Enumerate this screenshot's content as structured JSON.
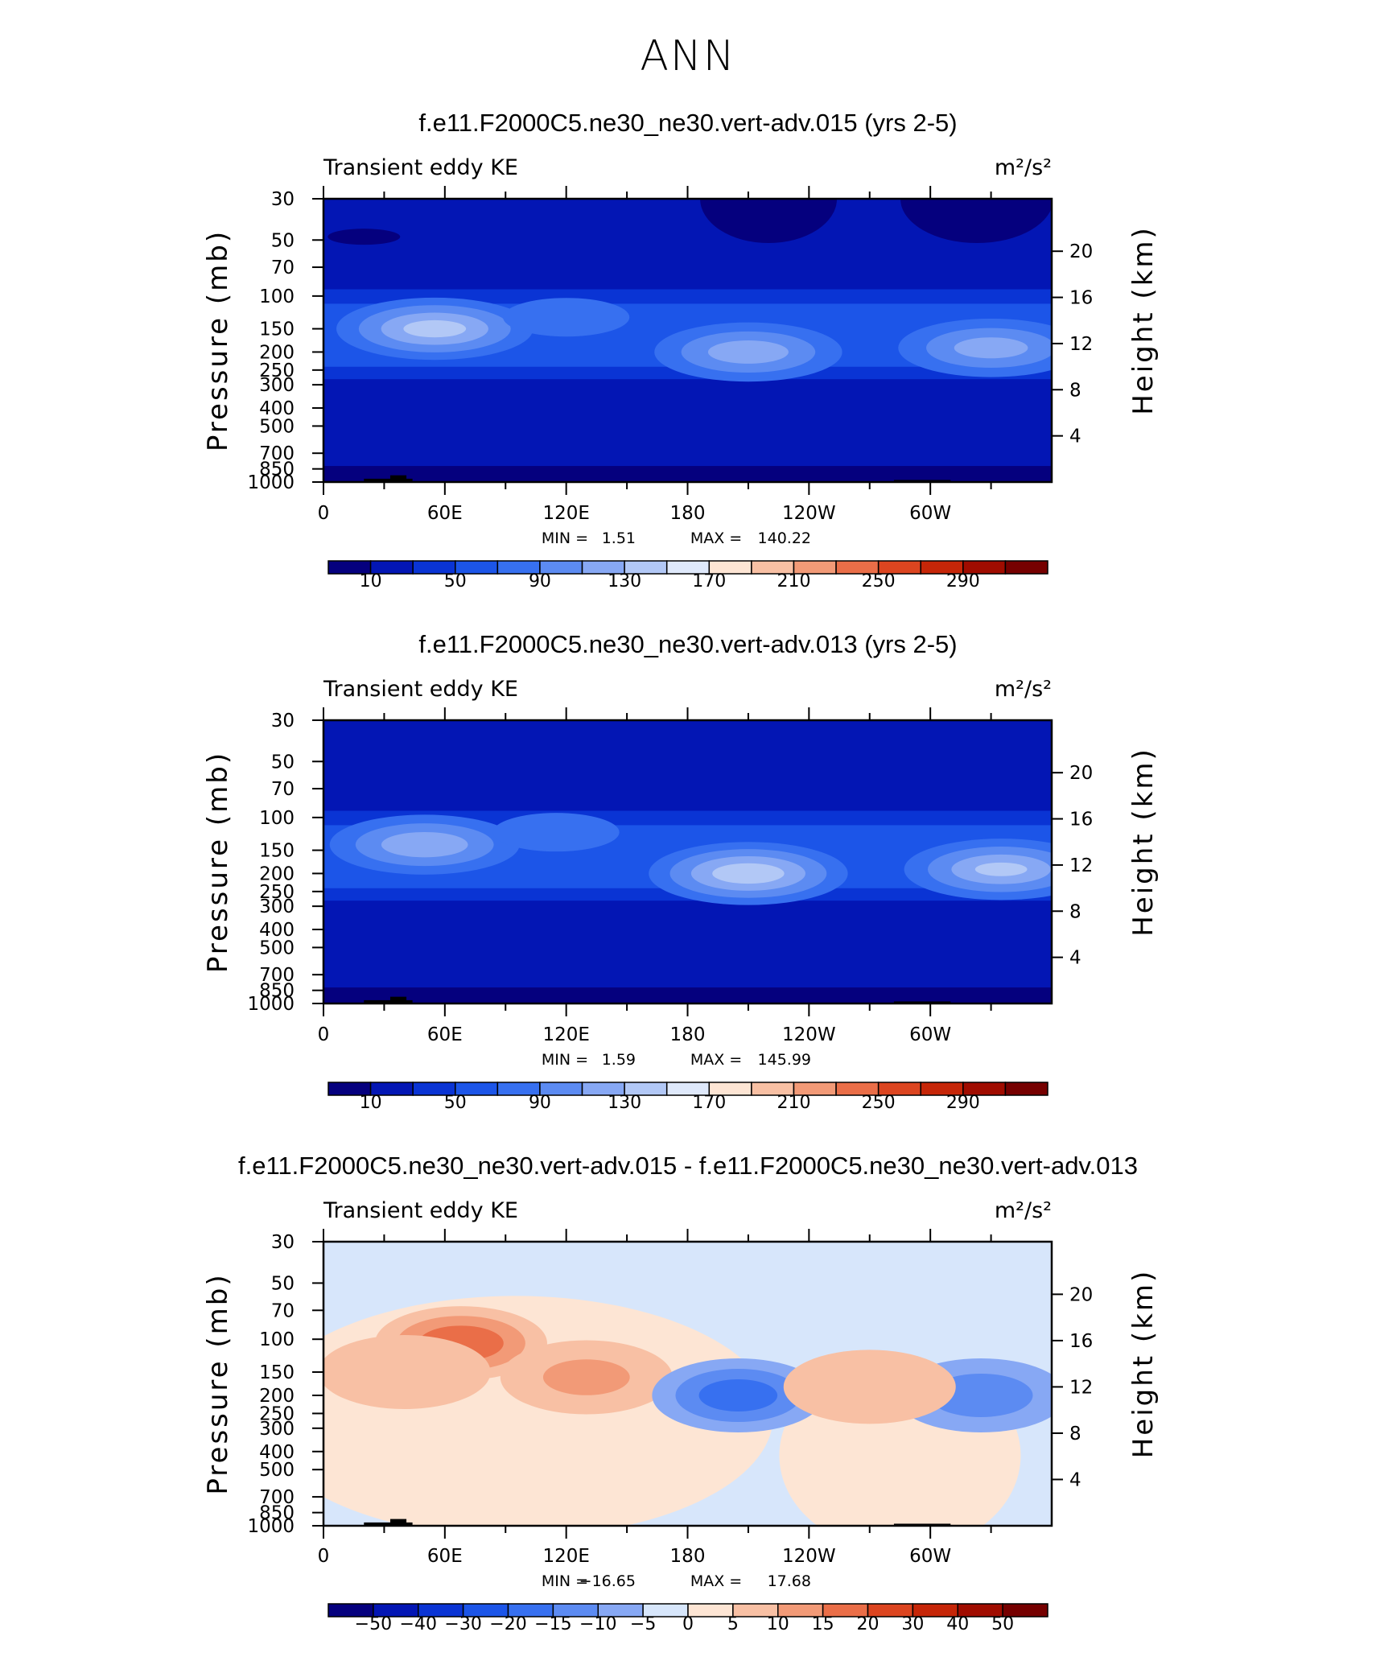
{
  "figure": {
    "title": "ANN"
  },
  "chart_data": [
    {
      "type": "contour",
      "title": "f.e11.F2000C5.ne30_ne30.vert-adv.015 (yrs 2-5)",
      "subtitle_left": "Transient eddy KE",
      "units": "m²/s²",
      "xlabel": "",
      "ylabel": "Pressure (mb)",
      "y2label": "Height (km)",
      "x_ticks": [
        "0",
        "60E",
        "120E",
        "180",
        "120W",
        "60W"
      ],
      "x_range": [
        0,
        360
      ],
      "y_ticks": [
        "30",
        "50",
        "70",
        "100",
        "150",
        "200",
        "250",
        "300",
        "400",
        "500",
        "700",
        "850",
        "1000"
      ],
      "y_range_mb": [
        1000,
        30
      ],
      "height_ticks": [
        "4",
        "8",
        "12",
        "16",
        "20"
      ],
      "stats": {
        "min_label": "MIN =",
        "min": "1.51",
        "max_label": "MAX =",
        "max": "140.22"
      },
      "colorbar": {
        "labels": [
          "10",
          "50",
          "90",
          "130",
          "170",
          "210",
          "250",
          "290"
        ],
        "levels": [
          10,
          30,
          50,
          70,
          90,
          110,
          130,
          150,
          170,
          190,
          210,
          230,
          250,
          270,
          290
        ],
        "colors": [
          "#05007e",
          "#0316b4",
          "#0a34d4",
          "#1c55e8",
          "#3770f0",
          "#5c8bf2",
          "#87a8f4",
          "#b2c8f6",
          "#dfe9fb",
          "#fde5d4",
          "#f8c0a4",
          "#f29a77",
          "#ea6e48",
          "#dc4520",
          "#c62608",
          "#a00c00",
          "#760000"
        ]
      },
      "features": [
        {
          "lon": 55,
          "p": 150,
          "value": 140
        },
        {
          "lon": 210,
          "p": 200,
          "value": 125
        },
        {
          "lon": 330,
          "p": 190,
          "value": 122
        },
        {
          "lon": 120,
          "p": 130,
          "value": 85
        }
      ]
    },
    {
      "type": "contour",
      "title": "f.e11.F2000C5.ne30_ne30.vert-adv.013 (yrs 2-5)",
      "subtitle_left": "Transient eddy KE",
      "units": "m²/s²",
      "xlabel": "",
      "ylabel": "Pressure (mb)",
      "y2label": "Height (km)",
      "x_ticks": [
        "0",
        "60E",
        "120E",
        "180",
        "120W",
        "60W"
      ],
      "x_range": [
        0,
        360
      ],
      "y_ticks": [
        "30",
        "50",
        "70",
        "100",
        "150",
        "200",
        "250",
        "300",
        "400",
        "500",
        "700",
        "850",
        "1000"
      ],
      "y_range_mb": [
        1000,
        30
      ],
      "height_ticks": [
        "4",
        "8",
        "12",
        "16",
        "20"
      ],
      "stats": {
        "min_label": "MIN =",
        "min": "1.59",
        "max_label": "MAX =",
        "max": "145.99"
      },
      "colorbar": {
        "labels": [
          "10",
          "50",
          "90",
          "130",
          "170",
          "210",
          "250",
          "290"
        ],
        "levels": [
          10,
          30,
          50,
          70,
          90,
          110,
          130,
          150,
          170,
          190,
          210,
          230,
          250,
          270,
          290
        ],
        "colors": [
          "#05007e",
          "#0316b4",
          "#0a34d4",
          "#1c55e8",
          "#3770f0",
          "#5c8bf2",
          "#87a8f4",
          "#b2c8f6",
          "#dfe9fb",
          "#fde5d4",
          "#f8c0a4",
          "#f29a77",
          "#ea6e48",
          "#dc4520",
          "#c62608",
          "#a00c00",
          "#760000"
        ]
      },
      "features": [
        {
          "lon": 50,
          "p": 140,
          "value": 128
        },
        {
          "lon": 210,
          "p": 200,
          "value": 145
        },
        {
          "lon": 335,
          "p": 190,
          "value": 135
        },
        {
          "lon": 115,
          "p": 120,
          "value": 85
        }
      ]
    },
    {
      "type": "contour",
      "title": "f.e11.F2000C5.ne30_ne30.vert-adv.015 - f.e11.F2000C5.ne30_ne30.vert-adv.013",
      "subtitle_left": "Transient eddy KE",
      "units": "m²/s²",
      "xlabel": "",
      "ylabel": "Pressure (mb)",
      "y2label": "Height (km)",
      "x_ticks": [
        "0",
        "60E",
        "120E",
        "180",
        "120W",
        "60W"
      ],
      "x_range": [
        0,
        360
      ],
      "y_ticks": [
        "30",
        "50",
        "70",
        "100",
        "150",
        "200",
        "250",
        "300",
        "400",
        "500",
        "700",
        "850",
        "1000"
      ],
      "y_range_mb": [
        1000,
        30
      ],
      "height_ticks": [
        "4",
        "8",
        "12",
        "16",
        "20"
      ],
      "stats": {
        "min_label": "MIN =",
        "min": "−16.65",
        "max_label": "MAX =",
        "max": "17.68"
      },
      "colorbar": {
        "labels": [
          "−50",
          "−40",
          "−30",
          "−20",
          "−15",
          "−10",
          "−5",
          "0",
          "5",
          "10",
          "15",
          "20",
          "30",
          "40",
          "50"
        ],
        "levels": [
          -50,
          -40,
          -30,
          -20,
          -15,
          -10,
          -5,
          0,
          5,
          10,
          15,
          20,
          30,
          40,
          50
        ],
        "colors": [
          "#05007e",
          "#0316b4",
          "#0a34d4",
          "#1c55e8",
          "#3770f0",
          "#5c8bf2",
          "#87a8f4",
          "#d7e6fb",
          "#fde5d4",
          "#f8c0a4",
          "#f29a77",
          "#ea6e48",
          "#dc4520",
          "#c62608",
          "#a00c00",
          "#760000"
        ]
      },
      "features": [
        {
          "lon": 68,
          "p": 105,
          "value": 17.7
        },
        {
          "lon": 130,
          "p": 160,
          "value": 10
        },
        {
          "lon": 40,
          "p": 150,
          "value": 6
        },
        {
          "lon": 205,
          "p": 200,
          "value": -16.6
        },
        {
          "lon": 325,
          "p": 200,
          "value": -12
        },
        {
          "lon": 270,
          "p": 180,
          "value": 7
        }
      ]
    }
  ]
}
